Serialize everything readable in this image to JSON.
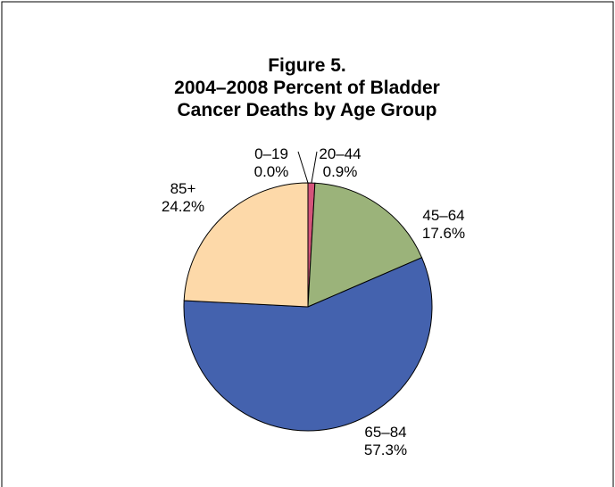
{
  "chart_data": {
    "type": "pie",
    "title_lines": [
      "Figure 5.",
      "2004–2008 Percent of Bladder",
      "Cancer Deaths by Age Group"
    ],
    "slices": [
      {
        "category": "0–19",
        "value": 0.0,
        "label": "0.0%",
        "color": "#E0E0E0"
      },
      {
        "category": "20–44",
        "value": 0.9,
        "label": "0.9%",
        "color": "#D4547A"
      },
      {
        "category": "45–64",
        "value": 17.6,
        "label": "17.6%",
        "color": "#9BB37A"
      },
      {
        "category": "65–84",
        "value": 57.3,
        "label": "57.3%",
        "color": "#4462AE"
      },
      {
        "category": "85+",
        "value": 24.2,
        "label": "24.2%",
        "color": "#FDD9A9"
      }
    ],
    "start": "12 o'clock",
    "direction": "clockwise",
    "legend": "none"
  }
}
